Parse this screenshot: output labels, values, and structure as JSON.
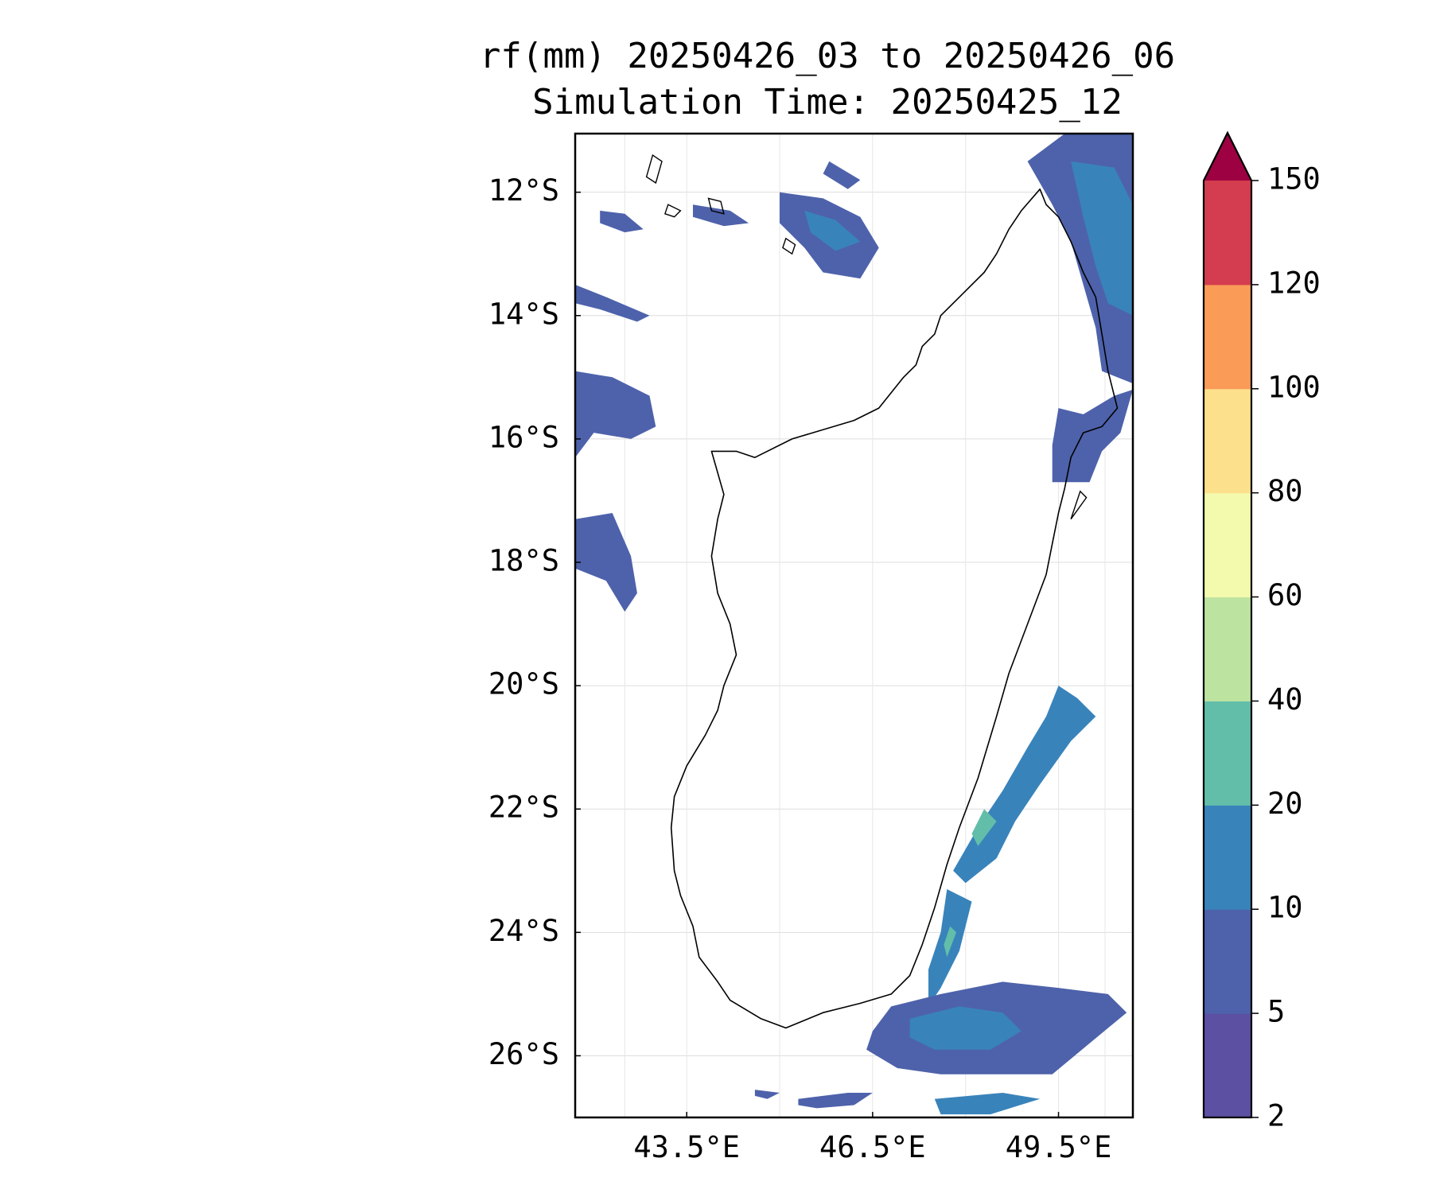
{
  "title": {
    "line1": "rf(mm) 20250426_03 to 20250426_06",
    "line2": "Simulation Time: 20250425_12"
  },
  "map": {
    "extent": {
      "lon_min": 41.7,
      "lon_max": 50.7,
      "lat_min": -27.0,
      "lat_max": -11.05
    },
    "lat_ticks": [
      {
        "value": -12,
        "label": "12°S"
      },
      {
        "value": -14,
        "label": "14°S"
      },
      {
        "value": -16,
        "label": "16°S"
      },
      {
        "value": -18,
        "label": "18°S"
      },
      {
        "value": -20,
        "label": "20°S"
      },
      {
        "value": -22,
        "label": "22°S"
      },
      {
        "value": -24,
        "label": "24°S"
      },
      {
        "value": -26,
        "label": "26°S"
      }
    ],
    "lon_ticks": [
      {
        "value": 43.5,
        "label": "43.5°E"
      },
      {
        "value": 46.5,
        "label": "46.5°E"
      },
      {
        "value": 49.5,
        "label": "49.5°E"
      }
    ],
    "gridlines": true,
    "coastline_color": "#000000",
    "coastline": [
      [
        43.9,
        -16.2
      ],
      [
        44.3,
        -16.2
      ],
      [
        44.6,
        -16.3
      ],
      [
        45.2,
        -16.0
      ],
      [
        46.2,
        -15.7
      ],
      [
        46.6,
        -15.5
      ],
      [
        47.0,
        -15.0
      ],
      [
        47.2,
        -14.8
      ],
      [
        47.3,
        -14.5
      ],
      [
        47.5,
        -14.3
      ],
      [
        47.6,
        -14.0
      ],
      [
        47.8,
        -13.8
      ],
      [
        48.0,
        -13.6
      ],
      [
        48.3,
        -13.3
      ],
      [
        48.5,
        -13.0
      ],
      [
        48.7,
        -12.6
      ],
      [
        48.9,
        -12.3
      ],
      [
        49.2,
        -11.95
      ],
      [
        49.3,
        -12.2
      ],
      [
        49.5,
        -12.4
      ],
      [
        49.7,
        -12.8
      ],
      [
        49.9,
        -13.3
      ],
      [
        50.1,
        -13.7
      ],
      [
        50.2,
        -14.3
      ],
      [
        50.3,
        -14.9
      ],
      [
        50.45,
        -15.5
      ],
      [
        50.2,
        -15.8
      ],
      [
        49.9,
        -15.9
      ],
      [
        49.7,
        -16.3
      ],
      [
        49.6,
        -16.8
      ],
      [
        49.5,
        -17.2
      ],
      [
        49.4,
        -17.7
      ],
      [
        49.3,
        -18.2
      ],
      [
        49.0,
        -19.0
      ],
      [
        48.7,
        -19.8
      ],
      [
        48.5,
        -20.5
      ],
      [
        48.2,
        -21.5
      ],
      [
        47.9,
        -22.3
      ],
      [
        47.7,
        -22.9
      ],
      [
        47.5,
        -23.6
      ],
      [
        47.3,
        -24.2
      ],
      [
        47.1,
        -24.7
      ],
      [
        46.8,
        -25.0
      ],
      [
        46.3,
        -25.15
      ],
      [
        45.7,
        -25.3
      ],
      [
        45.1,
        -25.55
      ],
      [
        44.7,
        -25.4
      ],
      [
        44.2,
        -25.1
      ],
      [
        44.0,
        -24.8
      ],
      [
        43.7,
        -24.4
      ],
      [
        43.6,
        -23.9
      ],
      [
        43.4,
        -23.4
      ],
      [
        43.3,
        -23.0
      ],
      [
        43.25,
        -22.3
      ],
      [
        43.3,
        -21.8
      ],
      [
        43.5,
        -21.3
      ],
      [
        43.8,
        -20.8
      ],
      [
        44.0,
        -20.4
      ],
      [
        44.1,
        -20.0
      ],
      [
        44.3,
        -19.5
      ],
      [
        44.2,
        -19.0
      ],
      [
        44.0,
        -18.5
      ],
      [
        43.9,
        -17.9
      ],
      [
        44.0,
        -17.3
      ],
      [
        44.1,
        -16.9
      ],
      [
        43.9,
        -16.2
      ]
    ],
    "islands": [
      [
        [
          42.95,
          -11.4
        ],
        [
          43.1,
          -11.5
        ],
        [
          43.0,
          -11.85
        ],
        [
          42.85,
          -11.75
        ],
        [
          42.95,
          -11.4
        ]
      ],
      [
        [
          43.2,
          -12.2
        ],
        [
          43.4,
          -12.3
        ],
        [
          43.3,
          -12.4
        ],
        [
          43.15,
          -12.35
        ],
        [
          43.2,
          -12.2
        ]
      ],
      [
        [
          43.85,
          -12.1
        ],
        [
          44.05,
          -12.15
        ],
        [
          44.1,
          -12.35
        ],
        [
          43.9,
          -12.3
        ],
        [
          43.85,
          -12.1
        ]
      ],
      [
        [
          45.1,
          -12.75
        ],
        [
          45.25,
          -12.85
        ],
        [
          45.2,
          -13.0
        ],
        [
          45.05,
          -12.9
        ],
        [
          45.1,
          -12.75
        ]
      ],
      [
        [
          49.85,
          -16.85
        ],
        [
          49.95,
          -16.95
        ],
        [
          49.7,
          -17.3
        ],
        [
          49.85,
          -16.85
        ]
      ]
    ],
    "rain_areas": [
      {
        "level": 5,
        "poly": [
          [
            42.1,
            -12.3
          ],
          [
            42.5,
            -12.35
          ],
          [
            42.8,
            -12.6
          ],
          [
            42.5,
            -12.65
          ],
          [
            42.1,
            -12.5
          ]
        ]
      },
      {
        "level": 5,
        "poly": [
          [
            43.6,
            -12.2
          ],
          [
            44.2,
            -12.3
          ],
          [
            44.5,
            -12.5
          ],
          [
            44.1,
            -12.55
          ],
          [
            43.6,
            -12.4
          ]
        ]
      },
      {
        "level": 5,
        "poly": [
          [
            45.0,
            -12.0
          ],
          [
            45.7,
            -12.1
          ],
          [
            46.3,
            -12.4
          ],
          [
            46.6,
            -12.9
          ],
          [
            46.3,
            -13.4
          ],
          [
            45.7,
            -13.3
          ],
          [
            45.4,
            -12.9
          ],
          [
            45.0,
            -12.5
          ]
        ]
      },
      {
        "level": 10,
        "poly": [
          [
            45.4,
            -12.3
          ],
          [
            45.9,
            -12.45
          ],
          [
            46.3,
            -12.8
          ],
          [
            45.9,
            -12.95
          ],
          [
            45.5,
            -12.65
          ]
        ]
      },
      {
        "level": 5,
        "poly": [
          [
            45.8,
            -11.5
          ],
          [
            46.3,
            -11.8
          ],
          [
            46.1,
            -11.95
          ],
          [
            45.7,
            -11.7
          ]
        ]
      },
      {
        "level": 5,
        "poly": [
          [
            41.7,
            -13.5
          ],
          [
            42.2,
            -13.7
          ],
          [
            42.9,
            -14.0
          ],
          [
            42.7,
            -14.1
          ],
          [
            42.1,
            -13.9
          ],
          [
            41.7,
            -13.8
          ]
        ]
      },
      {
        "level": 5,
        "poly": [
          [
            41.7,
            -14.9
          ],
          [
            42.3,
            -15.0
          ],
          [
            42.9,
            -15.3
          ],
          [
            43.0,
            -15.8
          ],
          [
            42.6,
            -16.0
          ],
          [
            42.0,
            -15.9
          ],
          [
            41.7,
            -16.3
          ]
        ]
      },
      {
        "level": 5,
        "poly": [
          [
            41.7,
            -17.3
          ],
          [
            42.3,
            -17.2
          ],
          [
            42.6,
            -17.9
          ],
          [
            42.7,
            -18.5
          ],
          [
            42.5,
            -18.8
          ],
          [
            42.2,
            -18.3
          ],
          [
            41.7,
            -18.1
          ]
        ]
      },
      {
        "level": 5,
        "poly": [
          [
            49.6,
            -11.05
          ],
          [
            50.7,
            -11.05
          ],
          [
            50.7,
            -15.1
          ],
          [
            50.2,
            -14.9
          ],
          [
            50.1,
            -14.2
          ],
          [
            49.9,
            -13.5
          ],
          [
            49.7,
            -12.8
          ],
          [
            49.4,
            -12.2
          ],
          [
            49.0,
            -11.5
          ]
        ]
      },
      {
        "level": 10,
        "poly": [
          [
            49.7,
            -11.5
          ],
          [
            50.4,
            -11.6
          ],
          [
            50.7,
            -12.2
          ],
          [
            50.7,
            -14.0
          ],
          [
            50.3,
            -13.8
          ],
          [
            50.1,
            -13.2
          ],
          [
            49.9,
            -12.4
          ]
        ]
      },
      {
        "level": 5,
        "poly": [
          [
            50.4,
            -15.3
          ],
          [
            50.7,
            -15.2
          ],
          [
            50.5,
            -15.9
          ],
          [
            50.2,
            -16.2
          ],
          [
            50.0,
            -16.7
          ],
          [
            49.4,
            -16.7
          ],
          [
            49.4,
            -16.1
          ],
          [
            49.5,
            -15.5
          ],
          [
            49.9,
            -15.6
          ]
        ]
      },
      {
        "level": 10,
        "poly": [
          [
            49.5,
            -20.0
          ],
          [
            49.8,
            -20.2
          ],
          [
            50.1,
            -20.5
          ],
          [
            49.7,
            -20.9
          ],
          [
            49.2,
            -21.6
          ],
          [
            48.8,
            -22.2
          ],
          [
            48.5,
            -22.8
          ],
          [
            48.0,
            -23.2
          ],
          [
            47.8,
            -23.0
          ],
          [
            48.2,
            -22.3
          ],
          [
            48.6,
            -21.7
          ],
          [
            49.0,
            -21.0
          ],
          [
            49.3,
            -20.5
          ]
        ]
      },
      {
        "level": 20,
        "poly": [
          [
            48.3,
            -22.0
          ],
          [
            48.5,
            -22.2
          ],
          [
            48.2,
            -22.6
          ],
          [
            48.1,
            -22.4
          ]
        ]
      },
      {
        "level": 10,
        "poly": [
          [
            47.7,
            -23.3
          ],
          [
            48.1,
            -23.5
          ],
          [
            47.9,
            -24.3
          ],
          [
            47.6,
            -24.9
          ],
          [
            47.4,
            -25.2
          ],
          [
            47.4,
            -24.6
          ],
          [
            47.6,
            -24.0
          ]
        ]
      },
      {
        "level": 20,
        "poly": [
          [
            47.75,
            -23.9
          ],
          [
            47.85,
            -24.0
          ],
          [
            47.7,
            -24.4
          ],
          [
            47.65,
            -24.2
          ]
        ]
      },
      {
        "level": 5,
        "poly": [
          [
            46.8,
            -25.2
          ],
          [
            47.6,
            -25.0
          ],
          [
            48.6,
            -24.8
          ],
          [
            49.5,
            -24.9
          ],
          [
            50.3,
            -25.0
          ],
          [
            50.6,
            -25.3
          ],
          [
            50.0,
            -25.8
          ],
          [
            49.4,
            -26.3
          ],
          [
            48.6,
            -26.3
          ],
          [
            47.6,
            -26.3
          ],
          [
            46.9,
            -26.2
          ],
          [
            46.4,
            -25.9
          ],
          [
            46.5,
            -25.6
          ]
        ]
      },
      {
        "level": 10,
        "poly": [
          [
            47.1,
            -25.4
          ],
          [
            47.9,
            -25.2
          ],
          [
            48.6,
            -25.3
          ],
          [
            48.9,
            -25.6
          ],
          [
            48.4,
            -25.9
          ],
          [
            47.5,
            -25.9
          ],
          [
            47.1,
            -25.7
          ]
        ]
      },
      {
        "level": 5,
        "poly": [
          [
            44.6,
            -26.55
          ],
          [
            45.0,
            -26.6
          ],
          [
            44.8,
            -26.7
          ],
          [
            44.6,
            -26.65
          ]
        ]
      },
      {
        "level": 5,
        "poly": [
          [
            45.3,
            -26.7
          ],
          [
            46.1,
            -26.6
          ],
          [
            46.5,
            -26.6
          ],
          [
            46.2,
            -26.8
          ],
          [
            45.6,
            -26.85
          ],
          [
            45.3,
            -26.8
          ]
        ]
      },
      {
        "level": 10,
        "poly": [
          [
            47.5,
            -26.7
          ],
          [
            48.6,
            -26.6
          ],
          [
            49.2,
            -26.7
          ],
          [
            48.4,
            -26.95
          ],
          [
            47.6,
            -26.95
          ]
        ]
      }
    ]
  },
  "colorbar": {
    "levels": [
      {
        "label": "2",
        "color": "#5b50a2"
      },
      {
        "label": "5",
        "color": "#4e62ab"
      },
      {
        "label": "10",
        "color": "#3983bb"
      },
      {
        "label": "20",
        "color": "#63bea9"
      },
      {
        "label": "40",
        "color": "#bde3a0"
      },
      {
        "label": "60",
        "color": "#f3f9ad"
      },
      {
        "label": "80",
        "color": "#fde08b"
      },
      {
        "label": "100",
        "color": "#fa9b58"
      },
      {
        "label": "120",
        "color": "#d33d4f"
      },
      {
        "label": "150",
        "color": null
      }
    ],
    "extend_color": "#9e0142"
  }
}
